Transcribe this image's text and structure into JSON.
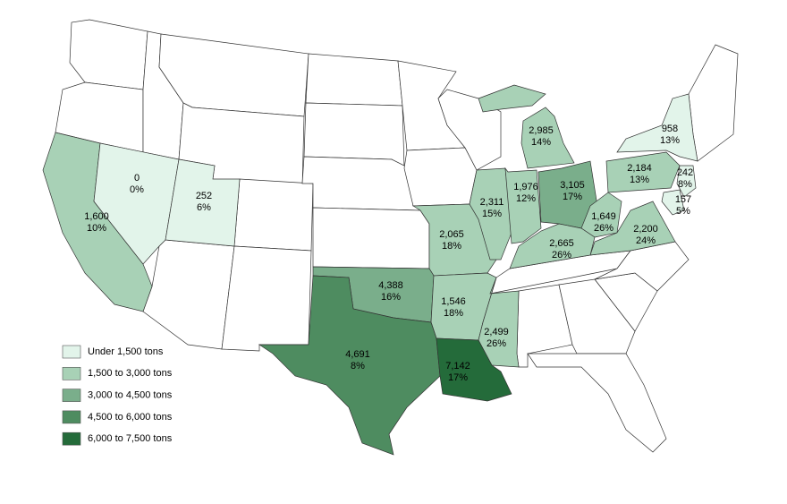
{
  "legend": {
    "breaks": [
      1500,
      3000,
      4500,
      6000
    ],
    "items": [
      {
        "label": "Under 1,500 tons",
        "color": "#e2f4ea"
      },
      {
        "label": "1,500 to 3,000 tons",
        "color": "#a8d1b6"
      },
      {
        "label": "3,000 to 4,500 tons",
        "color": "#7aae8b"
      },
      {
        "label": "4,500 to 6,000 tons",
        "color": "#4e8c60"
      },
      {
        "label": "6,000 to 7,500 tons",
        "color": "#246b3a"
      }
    ]
  },
  "regions": [
    {
      "value": 1600,
      "label": "1,600",
      "share_label": "10%"
    },
    {
      "value": 0,
      "label": "0",
      "share_label": "0%"
    },
    {
      "value": 252,
      "label": "252",
      "share_label": "6%"
    },
    {
      "value": 2065,
      "label": "2,065",
      "share_label": "18%"
    },
    {
      "value": 2311,
      "label": "2,311",
      "share_label": "15%"
    },
    {
      "value": 1976,
      "label": "1,976",
      "share_label": "12%"
    },
    {
      "value": 3105,
      "label": "3,105",
      "share_label": "17%"
    },
    {
      "value": 2985,
      "label": "2,985",
      "share_label": "14%"
    },
    {
      "value": 2184,
      "label": "2,184",
      "share_label": "13%"
    },
    {
      "value": 958,
      "label": "958",
      "share_label": "13%"
    },
    {
      "value": 242,
      "label": "242",
      "share_label": "8%"
    },
    {
      "value": 157,
      "label": "157",
      "share_label": "5%"
    },
    {
      "value": 1649,
      "label": "1,649",
      "share_label": "26%"
    },
    {
      "value": 2200,
      "label": "2,200",
      "share_label": "24%"
    },
    {
      "value": 2665,
      "label": "2,665",
      "share_label": "26%"
    },
    {
      "value": 4388,
      "label": "4,388",
      "share_label": "16%"
    },
    {
      "value": 1546,
      "label": "1,546",
      "share_label": "18%"
    },
    {
      "value": 2499,
      "label": "2,499",
      "share_label": "26%"
    },
    {
      "value": 4691,
      "label": "4,691",
      "share_label": "8%"
    },
    {
      "value": 7142,
      "label": "7,142",
      "share_label": "17%"
    }
  ]
}
